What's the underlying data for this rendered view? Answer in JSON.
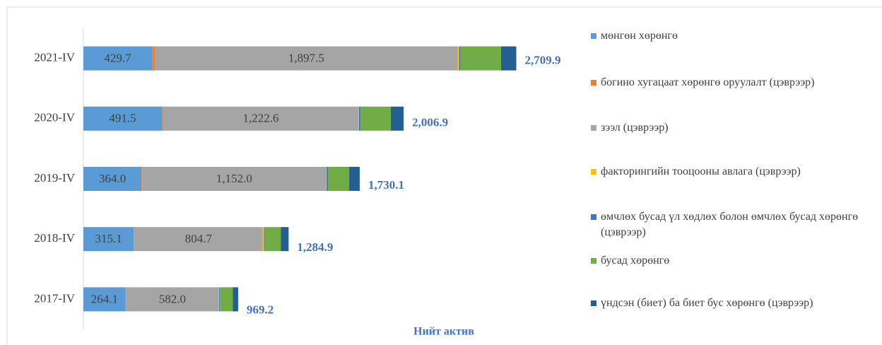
{
  "chart_data": {
    "type": "stacked_barh",
    "title": "Нийт актив",
    "categories": [
      "2021-IV",
      "2020-IV",
      "2019-IV",
      "2018-IV",
      "2017-IV"
    ],
    "xlim": [
      0,
      3000
    ],
    "series": [
      {
        "name": "мөнгөн хөрөнгө",
        "color": "#5b9bd5",
        "values": [
          429.7,
          491.5,
          364.0,
          315.1,
          264.1
        ],
        "value_labels": [
          "429.7",
          "491.5",
          "364.0",
          "315.1",
          "264.1"
        ]
      },
      {
        "name": "богино хугацаат хөрөнгө оруулалт (цэврээр)",
        "color": "#ed7d31",
        "values": [
          17,
          8,
          4,
          3,
          2
        ]
      },
      {
        "name": "зээл (цэврээр)",
        "color": "#a5a5a5",
        "values": [
          1897.5,
          1222.6,
          1152.0,
          804.7,
          582.0
        ],
        "value_labels": [
          "1,897.5",
          "1,222.6",
          "1,152.0",
          "804.7",
          "582.0"
        ]
      },
      {
        "name": "факторингийн тооцооны авлага (цэврээр)",
        "color": "#ffc000",
        "values": [
          8,
          3,
          3,
          8,
          2
        ]
      },
      {
        "name": "өмчлөх бусад үл хөдлөх болон өмчлөх бусад хөрөнгө (цэврээр)",
        "color": "#4472c4",
        "values": [
          8,
          10,
          8,
          5,
          5
        ]
      },
      {
        "name": "бусад хөрөнгө",
        "color": "#70ad47",
        "values": [
          255,
          190,
          133,
          100,
          80
        ]
      },
      {
        "name": "үндсэн (биет) ба биет бус хөрөнгө (цэврээр)",
        "color": "#255e91",
        "values": [
          95,
          80,
          66,
          49,
          34
        ]
      }
    ],
    "totals": {
      "color": "#4472c4",
      "values": [
        2709.9,
        2006.9,
        1730.1,
        1284.9,
        969.2
      ],
      "value_labels": [
        "2,709.9",
        "2,006.9",
        "1,730.1",
        "1,284.9",
        "969.2"
      ]
    }
  }
}
